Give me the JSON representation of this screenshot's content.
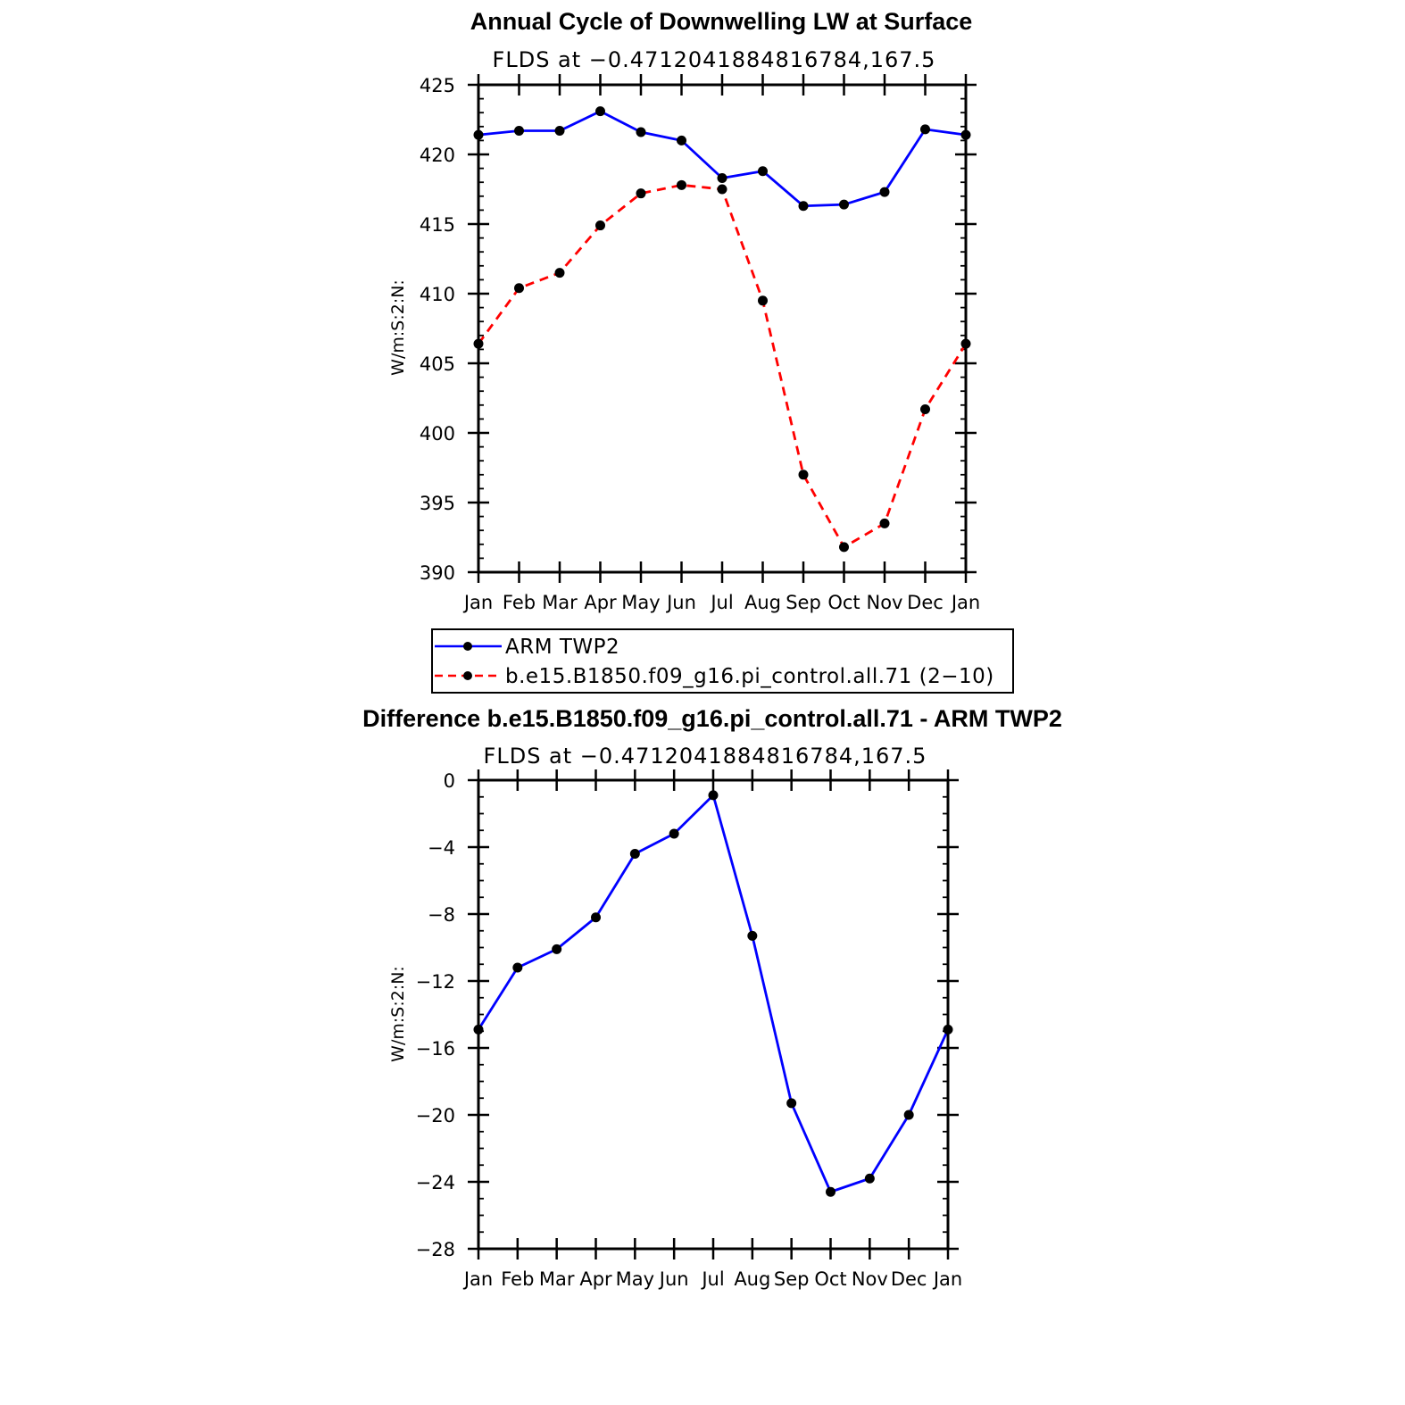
{
  "chart_data": [
    {
      "type": "line",
      "title": "Annual Cycle of Downwelling LW at Surface",
      "subtitle": "FLDS at −0.4712041884816784,167.5",
      "ylabel": "W/m:S:2:N:",
      "xlabel": "",
      "ylim": [
        390,
        425
      ],
      "yticks": [
        "390",
        "395",
        "400",
        "405",
        "410",
        "415",
        "420",
        "425"
      ],
      "categories": [
        "Jan",
        "Feb",
        "Mar",
        "Apr",
        "May",
        "Jun",
        "Jul",
        "Aug",
        "Sep",
        "Oct",
        "Nov",
        "Dec",
        "Jan"
      ],
      "grid": false,
      "legend_position": "below",
      "series": [
        {
          "name": "ARM TWP2",
          "color": "#0000ff",
          "dash": "solid",
          "values": [
            421.4,
            421.7,
            421.7,
            423.1,
            421.6,
            421.0,
            418.3,
            418.8,
            416.3,
            416.4,
            417.3,
            421.8,
            421.4
          ]
        },
        {
          "name": "b.e15.B1850.f09_g16.pi_control.all.71 (2−10)",
          "color": "#ff0000",
          "dash": "dashed",
          "values": [
            406.4,
            410.4,
            411.5,
            414.9,
            417.2,
            417.8,
            417.5,
            409.5,
            397.0,
            391.8,
            393.5,
            401.7,
            406.4
          ]
        }
      ]
    },
    {
      "type": "line",
      "title": "Difference b.e15.B1850.f09_g16.pi_control.all.71 - ARM TWP2",
      "subtitle": "FLDS at −0.4712041884816784,167.5",
      "ylabel": "W/m:S:2:N:",
      "xlabel": "",
      "ylim": [
        -28,
        0
      ],
      "yticks": [
        "−28",
        "−24",
        "−20",
        "−16",
        "−12",
        "−8",
        "−4",
        "0"
      ],
      "categories": [
        "Jan",
        "Feb",
        "Mar",
        "Apr",
        "May",
        "Jun",
        "Jul",
        "Aug",
        "Sep",
        "Oct",
        "Nov",
        "Dec",
        "Jan"
      ],
      "grid": false,
      "series": [
        {
          "color": "#0000ff",
          "dash": "solid",
          "values": [
            -14.9,
            -11.2,
            -10.1,
            -8.2,
            -4.4,
            -3.2,
            -0.9,
            -9.3,
            -19.3,
            -24.6,
            -23.8,
            -20.0,
            -14.9
          ]
        }
      ]
    }
  ]
}
